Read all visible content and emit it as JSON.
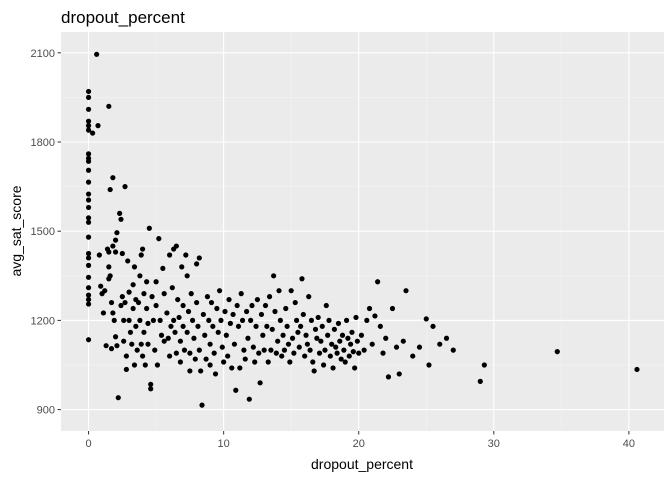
{
  "chart_data": {
    "type": "scatter",
    "title": "dropout_percent",
    "xlabel": "dropout_percent",
    "ylabel": "avg_sat_score",
    "xlim": [
      -2.04,
      42.6
    ],
    "ylim": [
      828,
      2170
    ],
    "x_ticks": [
      0,
      10,
      20,
      30,
      40
    ],
    "x_tick_labels": [
      "0",
      "10",
      "20",
      "30",
      "40"
    ],
    "y_ticks": [
      900,
      1200,
      1500,
      1800,
      2100
    ],
    "y_tick_labels": [
      "900",
      "1200",
      "1500",
      "1800",
      "2100"
    ],
    "grid": true,
    "colors": {
      "panel_background": "#ebebeb",
      "grid_major": "#ffffff",
      "grid_minor": "#f5f5f5",
      "point": "#000000",
      "tick": "#333333"
    },
    "points": [
      [
        0,
        1970
      ],
      [
        0,
        1950
      ],
      [
        0,
        1910
      ],
      [
        0,
        1870
      ],
      [
        0,
        1855
      ],
      [
        0,
        1840
      ],
      [
        0,
        1760
      ],
      [
        0,
        1745
      ],
      [
        0,
        1735
      ],
      [
        0,
        1705
      ],
      [
        0,
        1665
      ],
      [
        0,
        1625
      ],
      [
        0,
        1605
      ],
      [
        0,
        1580
      ],
      [
        0,
        1545
      ],
      [
        0,
        1530
      ],
      [
        0,
        1480
      ],
      [
        0,
        1425
      ],
      [
        0,
        1410
      ],
      [
        0,
        1385
      ],
      [
        0,
        1345
      ],
      [
        0,
        1310
      ],
      [
        0,
        1285
      ],
      [
        0,
        1270
      ],
      [
        0,
        1255
      ],
      [
        0,
        1135
      ],
      [
        0.3,
        1830
      ],
      [
        0.6,
        2095
      ],
      [
        0.7,
        1855
      ],
      [
        0.8,
        1420
      ],
      [
        0.9,
        1315
      ],
      [
        1.0,
        1290
      ],
      [
        1.1,
        1225
      ],
      [
        1.2,
        1300
      ],
      [
        1.3,
        1115
      ],
      [
        1.4,
        1440
      ],
      [
        1.5,
        1920
      ],
      [
        1.5,
        1430
      ],
      [
        1.5,
        1380
      ],
      [
        1.5,
        1340
      ],
      [
        1.6,
        1640
      ],
      [
        1.6,
        1350
      ],
      [
        1.7,
        1260
      ],
      [
        1.7,
        1105
      ],
      [
        1.8,
        1680
      ],
      [
        1.8,
        1450
      ],
      [
        1.8,
        1225
      ],
      [
        1.9,
        1200
      ],
      [
        2.0,
        1470
      ],
      [
        2.0,
        1430
      ],
      [
        2.0,
        1145
      ],
      [
        2.1,
        1495
      ],
      [
        2.1,
        1115
      ],
      [
        2.2,
        940
      ],
      [
        2.3,
        1560
      ],
      [
        2.4,
        1540
      ],
      [
        2.4,
        1250
      ],
      [
        2.5,
        1425
      ],
      [
        2.5,
        1280
      ],
      [
        2.6,
        1200
      ],
      [
        2.6,
        1130
      ],
      [
        2.7,
        1650
      ],
      [
        2.7,
        1260
      ],
      [
        2.8,
        1080
      ],
      [
        2.8,
        1035
      ],
      [
        2.9,
        1400
      ],
      [
        3.0,
        1295
      ],
      [
        3.0,
        1200
      ],
      [
        3.1,
        1160
      ],
      [
        3.2,
        1120
      ],
      [
        3.3,
        1320
      ],
      [
        3.3,
        1240
      ],
      [
        3.4,
        1380
      ],
      [
        3.4,
        1050
      ],
      [
        3.5,
        1270
      ],
      [
        3.5,
        1180
      ],
      [
        3.6,
        1100
      ],
      [
        3.7,
        1260
      ],
      [
        3.8,
        1350
      ],
      [
        3.8,
        1200
      ],
      [
        3.9,
        1420
      ],
      [
        3.9,
        1120
      ],
      [
        4.0,
        1440
      ],
      [
        4.0,
        1080
      ],
      [
        4.1,
        1290
      ],
      [
        4.1,
        1160
      ],
      [
        4.2,
        1050
      ],
      [
        4.3,
        1330
      ],
      [
        4.3,
        1240
      ],
      [
        4.4,
        1190
      ],
      [
        4.4,
        1120
      ],
      [
        4.5,
        1510
      ],
      [
        4.6,
        985
      ],
      [
        4.6,
        970
      ],
      [
        4.7,
        1280
      ],
      [
        4.8,
        1200
      ],
      [
        4.9,
        1100
      ],
      [
        5.0,
        1330
      ],
      [
        5.0,
        1250
      ],
      [
        5.1,
        1050
      ],
      [
        5.2,
        1475
      ],
      [
        5.3,
        1200
      ],
      [
        5.4,
        1150
      ],
      [
        5.5,
        1375
      ],
      [
        5.6,
        1290
      ],
      [
        5.6,
        1130
      ],
      [
        5.8,
        1225
      ],
      [
        5.9,
        1140
      ],
      [
        6.0,
        1420
      ],
      [
        6.0,
        1080
      ],
      [
        6.1,
        1180
      ],
      [
        6.2,
        1310
      ],
      [
        6.3,
        1440
      ],
      [
        6.3,
        1200
      ],
      [
        6.4,
        1160
      ],
      [
        6.5,
        1450
      ],
      [
        6.5,
        1090
      ],
      [
        6.6,
        1270
      ],
      [
        6.7,
        1210
      ],
      [
        6.8,
        1130
      ],
      [
        6.8,
        1060
      ],
      [
        6.9,
        1380
      ],
      [
        7.0,
        1250
      ],
      [
        7.0,
        1180
      ],
      [
        7.1,
        1100
      ],
      [
        7.2,
        1420
      ],
      [
        7.3,
        1350
      ],
      [
        7.3,
        1160
      ],
      [
        7.4,
        1230
      ],
      [
        7.5,
        1090
      ],
      [
        7.5,
        1030
      ],
      [
        7.6,
        1290
      ],
      [
        7.7,
        1200
      ],
      [
        7.8,
        1140
      ],
      [
        7.9,
        1070
      ],
      [
        8.0,
        1390
      ],
      [
        8.0,
        1260
      ],
      [
        8.1,
        1180
      ],
      [
        8.2,
        1410
      ],
      [
        8.2,
        1100
      ],
      [
        8.3,
        1030
      ],
      [
        8.4,
        915
      ],
      [
        8.5,
        1220
      ],
      [
        8.6,
        1150
      ],
      [
        8.7,
        1070
      ],
      [
        8.8,
        1280
      ],
      [
        8.9,
        1200
      ],
      [
        9.0,
        1120
      ],
      [
        9.0,
        1050
      ],
      [
        9.1,
        1260
      ],
      [
        9.2,
        1180
      ],
      [
        9.3,
        1090
      ],
      [
        9.4,
        1020
      ],
      [
        9.5,
        1240
      ],
      [
        9.6,
        1160
      ],
      [
        9.7,
        1300
      ],
      [
        9.8,
        1200
      ],
      [
        9.9,
        1110
      ],
      [
        10.0,
        1060
      ],
      [
        10.1,
        1230
      ],
      [
        10.2,
        1150
      ],
      [
        10.3,
        1080
      ],
      [
        10.4,
        1270
      ],
      [
        10.5,
        1190
      ],
      [
        10.6,
        1040
      ],
      [
        10.7,
        1220
      ],
      [
        10.8,
        1120
      ],
      [
        10.9,
        965
      ],
      [
        11.0,
        1250
      ],
      [
        11.1,
        1180
      ],
      [
        11.2,
        1040
      ],
      [
        11.3,
        1290
      ],
      [
        11.4,
        1200
      ],
      [
        11.5,
        1100
      ],
      [
        11.6,
        1070
      ],
      [
        11.7,
        1230
      ],
      [
        11.8,
        1140
      ],
      [
        11.9,
        935
      ],
      [
        12.0,
        1200
      ],
      [
        12.1,
        1250
      ],
      [
        12.2,
        1110
      ],
      [
        12.3,
        1060
      ],
      [
        12.4,
        1180
      ],
      [
        12.5,
        1270
      ],
      [
        12.6,
        1090
      ],
      [
        12.7,
        990
      ],
      [
        12.8,
        1220
      ],
      [
        12.9,
        1150
      ],
      [
        13.0,
        1100
      ],
      [
        13.1,
        1250
      ],
      [
        13.2,
        1180
      ],
      [
        13.3,
        1060
      ],
      [
        13.4,
        1280
      ],
      [
        13.5,
        1100
      ],
      [
        13.6,
        1170
      ],
      [
        13.7,
        1350
      ],
      [
        13.8,
        1230
      ],
      [
        13.9,
        1090
      ],
      [
        14.0,
        1130
      ],
      [
        14.1,
        1300
      ],
      [
        14.2,
        1200
      ],
      [
        14.3,
        1080
      ],
      [
        14.4,
        1150
      ],
      [
        14.5,
        1100
      ],
      [
        14.6,
        1240
      ],
      [
        14.7,
        1180
      ],
      [
        14.8,
        1120
      ],
      [
        14.9,
        1060
      ],
      [
        15.0,
        1300
      ],
      [
        15.1,
        1140
      ],
      [
        15.2,
        1090
      ],
      [
        15.3,
        1260
      ],
      [
        15.4,
        1200
      ],
      [
        15.5,
        1160
      ],
      [
        15.6,
        1110
      ],
      [
        15.7,
        1180
      ],
      [
        15.8,
        1340
      ],
      [
        15.9,
        1220
      ],
      [
        16.0,
        1080
      ],
      [
        16.1,
        1150
      ],
      [
        16.2,
        1120
      ],
      [
        16.3,
        1280
      ],
      [
        16.4,
        1100
      ],
      [
        16.5,
        1200
      ],
      [
        16.6,
        1060
      ],
      [
        16.7,
        1030
      ],
      [
        16.8,
        1170
      ],
      [
        16.9,
        1140
      ],
      [
        17.0,
        1210
      ],
      [
        17.1,
        1090
      ],
      [
        17.2,
        1130
      ],
      [
        17.3,
        1180
      ],
      [
        17.4,
        1050
      ],
      [
        17.5,
        1100
      ],
      [
        17.6,
        1250
      ],
      [
        17.7,
        1150
      ],
      [
        17.8,
        1200
      ],
      [
        17.9,
        1080
      ],
      [
        18.0,
        1120
      ],
      [
        18.1,
        1040
      ],
      [
        18.2,
        1170
      ],
      [
        18.3,
        1110
      ],
      [
        18.4,
        1090
      ],
      [
        18.5,
        1190
      ],
      [
        18.6,
        1130
      ],
      [
        18.7,
        1070
      ],
      [
        18.8,
        1150
      ],
      [
        18.9,
        1100
      ],
      [
        19.0,
        1060
      ],
      [
        19.1,
        1200
      ],
      [
        19.2,
        1140
      ],
      [
        19.3,
        1080
      ],
      [
        19.4,
        1120
      ],
      [
        19.5,
        1160
      ],
      [
        19.6,
        1095
      ],
      [
        19.7,
        1040
      ],
      [
        19.8,
        1210
      ],
      [
        19.9,
        1130
      ],
      [
        20.0,
        1090
      ],
      [
        20.2,
        1150
      ],
      [
        20.4,
        1100
      ],
      [
        20.6,
        1200
      ],
      [
        20.8,
        1240
      ],
      [
        21.0,
        1120
      ],
      [
        21.2,
        1215
      ],
      [
        21.4,
        1330
      ],
      [
        21.6,
        1180
      ],
      [
        21.8,
        1090
      ],
      [
        22.0,
        1140
      ],
      [
        22.2,
        1010
      ],
      [
        22.5,
        1240
      ],
      [
        22.8,
        1110
      ],
      [
        23.0,
        1020
      ],
      [
        23.3,
        1130
      ],
      [
        23.5,
        1300
      ],
      [
        24.0,
        1080
      ],
      [
        24.5,
        1110
      ],
      [
        25.0,
        1205
      ],
      [
        25.2,
        1050
      ],
      [
        25.5,
        1180
      ],
      [
        26.0,
        1120
      ],
      [
        26.5,
        1140
      ],
      [
        27.0,
        1100
      ],
      [
        29.0,
        995
      ],
      [
        29.3,
        1050
      ],
      [
        34.7,
        1095
      ],
      [
        40.6,
        1035
      ]
    ]
  }
}
